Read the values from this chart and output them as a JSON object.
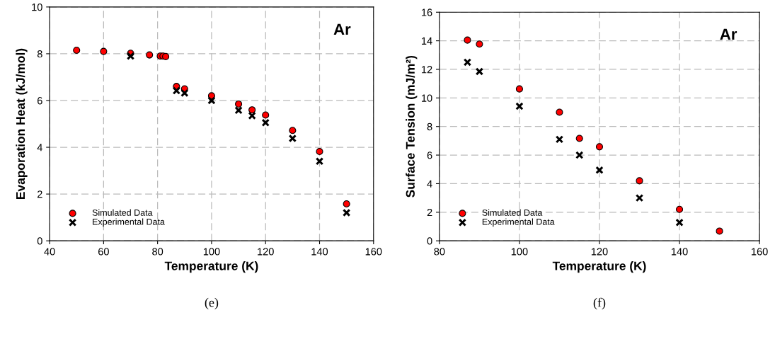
{
  "chart_data": [
    {
      "type": "scatter",
      "xlabel": "Temperature (K)",
      "ylabel": "Evaporation Heat (kJ/mol)",
      "xlim": [
        40,
        160
      ],
      "ylim": [
        0,
        10
      ],
      "xticks": [
        40,
        60,
        80,
        100,
        120,
        140,
        160
      ],
      "yticks": [
        0,
        2,
        4,
        6,
        8,
        10
      ],
      "grid": true,
      "legend": "bottom left",
      "annotations": [
        "Ar",
        "(e)"
      ],
      "series": [
        {
          "name": "Simulated Data",
          "color": "#ff0000",
          "marker": "circle",
          "x": [
            50,
            60,
            70,
            77,
            81,
            82,
            83,
            87,
            90,
            100,
            110,
            115,
            120,
            130,
            140,
            150
          ],
          "values": [
            8.15,
            8.1,
            8.02,
            7.95,
            7.9,
            7.9,
            7.88,
            6.6,
            6.5,
            6.2,
            5.85,
            5.6,
            5.38,
            4.72,
            3.82,
            1.58
          ]
        },
        {
          "name": "Experimental Data",
          "color": "#000000",
          "marker": "cross",
          "x": [
            70,
            87,
            90,
            100,
            110,
            115,
            120,
            130,
            140,
            150
          ],
          "values": [
            7.9,
            6.42,
            6.32,
            6.0,
            5.58,
            5.35,
            5.05,
            4.38,
            3.4,
            1.2
          ]
        }
      ]
    },
    {
      "type": "scatter",
      "xlabel": "Temperature (K)",
      "ylabel": "Surface Tension (mJ/m²)",
      "xlim": [
        80,
        160
      ],
      "ylim": [
        0,
        16
      ],
      "xticks": [
        80,
        100,
        120,
        140,
        160
      ],
      "yticks": [
        0,
        2,
        4,
        6,
        8,
        10,
        12,
        14,
        16
      ],
      "grid": true,
      "legend": "bottom left",
      "annotations": [
        "Ar",
        "(f)"
      ],
      "series": [
        {
          "name": "Simulated Data",
          "color": "#ff0000",
          "marker": "circle",
          "x": [
            87,
            90,
            100,
            110,
            115,
            120,
            130,
            140,
            150
          ],
          "values": [
            14.05,
            13.77,
            10.63,
            9.0,
            7.17,
            6.58,
            4.2,
            2.2,
            0.68
          ]
        },
        {
          "name": "Experimental Data",
          "color": "#000000",
          "marker": "cross",
          "x": [
            87,
            90,
            100,
            110,
            115,
            120,
            130,
            140
          ],
          "values": [
            12.5,
            11.85,
            9.42,
            7.1,
            6.0,
            4.95,
            3.0,
            1.28
          ]
        }
      ]
    }
  ]
}
